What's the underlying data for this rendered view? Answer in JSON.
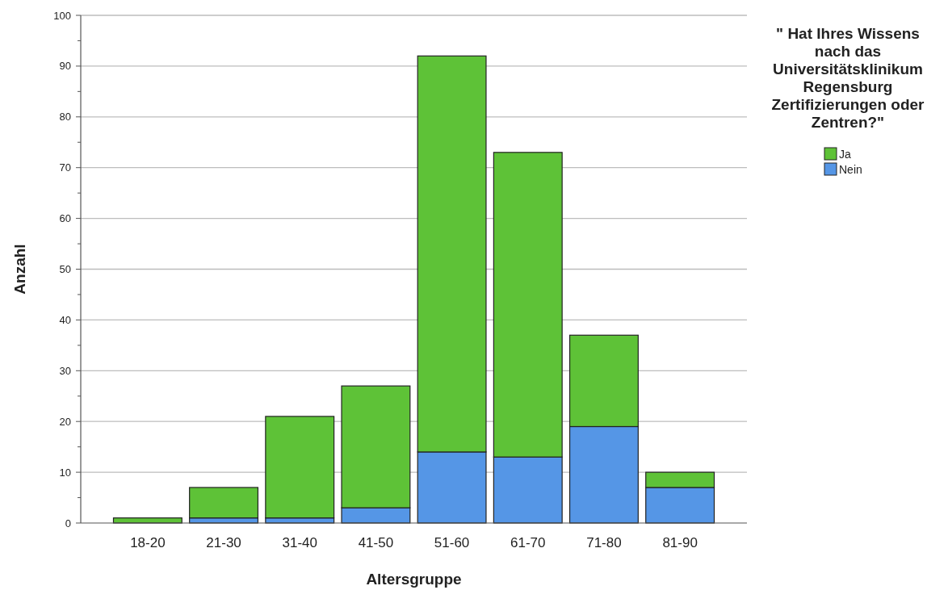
{
  "chart_data": {
    "type": "bar",
    "stacked": true,
    "xlabel": "Altersgruppe",
    "ylabel": "Anzahl",
    "legend_title": "\" Hat Ihres Wissens nach das Universitätsklinikum Regensburg Zertifizierungen oder Zentren?\"",
    "categories": [
      "18-20",
      "21-30",
      "31-40",
      "41-50",
      "51-60",
      "61-70",
      "71-80",
      "81-90"
    ],
    "series": [
      {
        "name": "Nein",
        "color": "#5596e6",
        "values": [
          0,
          1,
          1,
          3,
          14,
          13,
          19,
          7
        ]
      },
      {
        "name": "Ja",
        "color": "#5ec237",
        "values": [
          1,
          6,
          20,
          24,
          78,
          60,
          18,
          3
        ]
      }
    ],
    "ylim": [
      0,
      100
    ],
    "yticks": [
      0,
      {
        "value": 5,
        "label": null
      },
      10,
      {
        "value": 15,
        "label": null
      },
      20,
      {
        "value": 25,
        "label": null
      },
      30,
      {
        "value": 35,
        "label": null
      },
      40,
      {
        "value": 45,
        "label": null
      },
      50,
      {
        "value": 55,
        "label": null
      },
      60,
      {
        "value": 65,
        "label": null
      },
      70,
      {
        "value": 75,
        "label": null
      },
      80,
      {
        "value": 85,
        "label": null
      },
      90,
      {
        "value": 95,
        "label": null
      },
      100
    ],
    "grid": "y",
    "legend": "top right"
  }
}
